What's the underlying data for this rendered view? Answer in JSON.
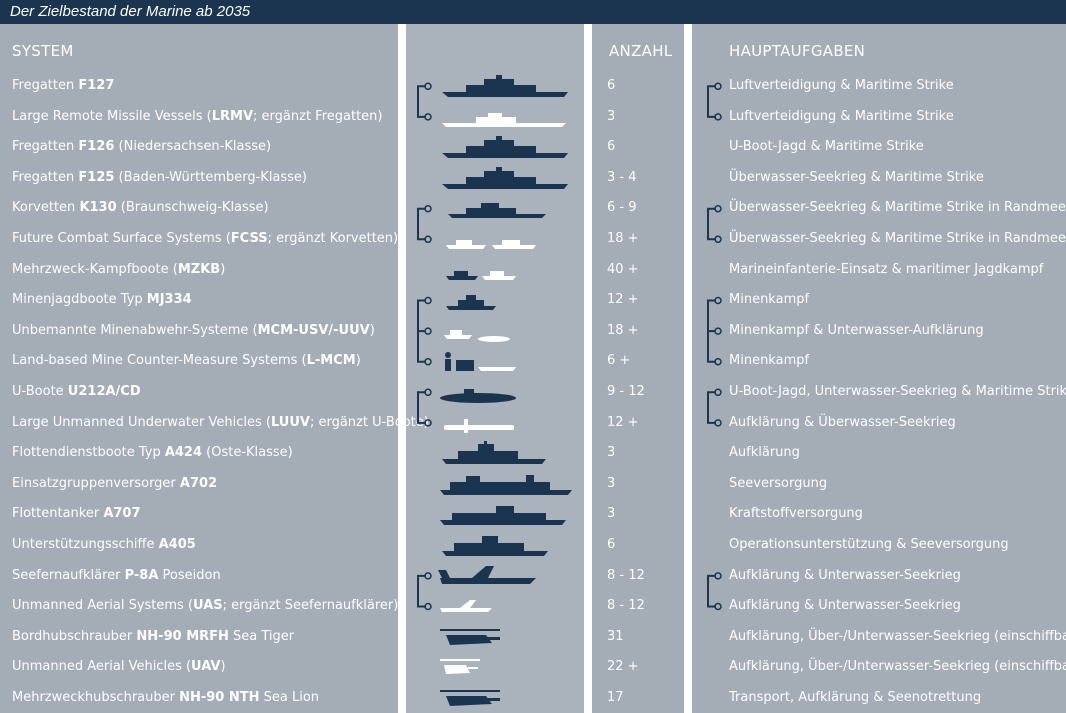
{
  "title": "Der Zielbestand der Marine ab 2035",
  "headers": {
    "system": "SYSTEM",
    "count": "ANZAHL",
    "tasks": "HAUPTAUFGABEN"
  },
  "rows": [
    {
      "pre": "Fregatten ",
      "bold": "F127",
      "post": "",
      "count": "6",
      "task": "Luftverteidigung & Maritime Strike",
      "icon": "frigate-icon"
    },
    {
      "pre": "Large Remote Missile Vessels (",
      "bold": "LRMV",
      "post": "; ergänzt Fregatten)",
      "count": "3",
      "task": "Luftverteidigung & Maritime Strike",
      "icon": "missile-vessel-icon"
    },
    {
      "pre": "Fregatten ",
      "bold": "F126",
      "post": " (Niedersachsen-Klasse)",
      "count": "6",
      "task": "U-Boot-Jagd & Maritime Strike",
      "icon": "frigate-icon"
    },
    {
      "pre": "Fregatten ",
      "bold": "F125",
      "post": " (Baden-Württemberg-Klasse)",
      "count": "3 - 4",
      "task": "Überwasser-Seekrieg & Maritime Strike",
      "icon": "frigate-icon"
    },
    {
      "pre": "Korvetten ",
      "bold": "K130",
      "post": " (Braunschweig-Klasse)",
      "count": "6 - 9",
      "task": "Überwasser-Seekrieg & Maritime Strike in Randmeeren",
      "icon": "corvette-icon"
    },
    {
      "pre": "Future Combat Surface Systems (",
      "bold": "FCSS",
      "post": "; ergänzt Korvetten)",
      "count": "18 +",
      "task": "Überwasser-Seekrieg & Maritime Strike in Randmeeren",
      "icon": "surface-drone-icon"
    },
    {
      "pre": "Mehrzweck-Kampfboote (",
      "bold": "MZKB",
      "post": ")",
      "count": "40 +",
      "task": "Marineinfanterie-Einsatz & maritimer Jagdkampf",
      "icon": "combat-boat-icon"
    },
    {
      "pre": "Minenjagdboote Typ ",
      "bold": "MJ334",
      "post": "",
      "count": "12 +",
      "task": "Minenkampf",
      "icon": "minehunter-icon"
    },
    {
      "pre": "Unbemannte Minenabwehr-Systeme (",
      "bold": "MCM-USV/-UUV",
      "post": ")",
      "count": "18 +",
      "task": "Minenkampf & Unterwasser-Aufklärung",
      "icon": "mine-drone-icon"
    },
    {
      "pre": "Land-based Mine Counter-Measure Systems (",
      "bold": "L-MCM",
      "post": ")",
      "count": "6 +",
      "task": "Minenkampf",
      "icon": "land-mcm-icon"
    },
    {
      "pre": "U-Boote ",
      "bold": "U212A/CD",
      "post": "",
      "count": "9 - 12",
      "task": "U-Boot-Jagd, Unterwasser-Seekrieg & Maritime Strike",
      "icon": "submarine-icon"
    },
    {
      "pre": "Large Unmanned Underwater Vehicles (",
      "bold": "LUUV",
      "post": "; ergänzt U-Boote)",
      "count": "12 +",
      "task": "Aufklärung & Überwasser-Seekrieg",
      "icon": "underwater-drone-icon"
    },
    {
      "pre": "Flottendienstboote Typ ",
      "bold": "A424",
      "post": " (Oste-Klasse)",
      "count": "3",
      "task": "Aufklärung",
      "icon": "intel-ship-icon"
    },
    {
      "pre": "Einsatzgruppenversorger ",
      "bold": "A702",
      "post": "",
      "count": "3",
      "task": "Seeversorgung",
      "icon": "supply-ship-icon"
    },
    {
      "pre": "Flottentanker ",
      "bold": "A707",
      "post": "",
      "count": "3",
      "task": "Kraftstoffversorgung",
      "icon": "tanker-icon"
    },
    {
      "pre": "Unterstützungsschiffe ",
      "bold": "A405",
      "post": "",
      "count": "6",
      "task": "Operationsunterstützung & Seeversorgung",
      "icon": "support-ship-icon"
    },
    {
      "pre": "Seefernaufklärer ",
      "bold": "P-8A",
      "post": " Poseidon",
      "count": "8 - 12",
      "task": "Aufklärung & Unterwasser-Seekrieg",
      "icon": "patrol-aircraft-icon"
    },
    {
      "pre": "Unmanned Aerial Systems (",
      "bold": "UAS",
      "post": "; ergänzt Seefernaufklärer)",
      "count": "8 - 12",
      "task": "Aufklärung & Unterwasser-Seekrieg",
      "icon": "uas-icon"
    },
    {
      "pre": "Bordhubschrauber ",
      "bold": "NH-90 MRFH",
      "post": " Sea Tiger",
      "count": "31",
      "task": "Aufklärung, Über-/Unterwasser-Seekrieg (einschiffbar)",
      "icon": "helicopter-icon"
    },
    {
      "pre": "Unmanned Aerial Vehicles (",
      "bold": "UAV",
      "post": ")",
      "count": "22 +",
      "task": "Aufklärung, Über-/Unterwasser-Seekrieg (einschiffbar)",
      "icon": "drone-helicopter-icon"
    },
    {
      "pre": "Mehrzweckhubschrauber ",
      "bold": "NH-90 NTH",
      "post": " Sea Lion",
      "count": "17",
      "task": "Transport, Aufklärung & Seenotrettung",
      "icon": "transport-helicopter-icon"
    }
  ]
}
